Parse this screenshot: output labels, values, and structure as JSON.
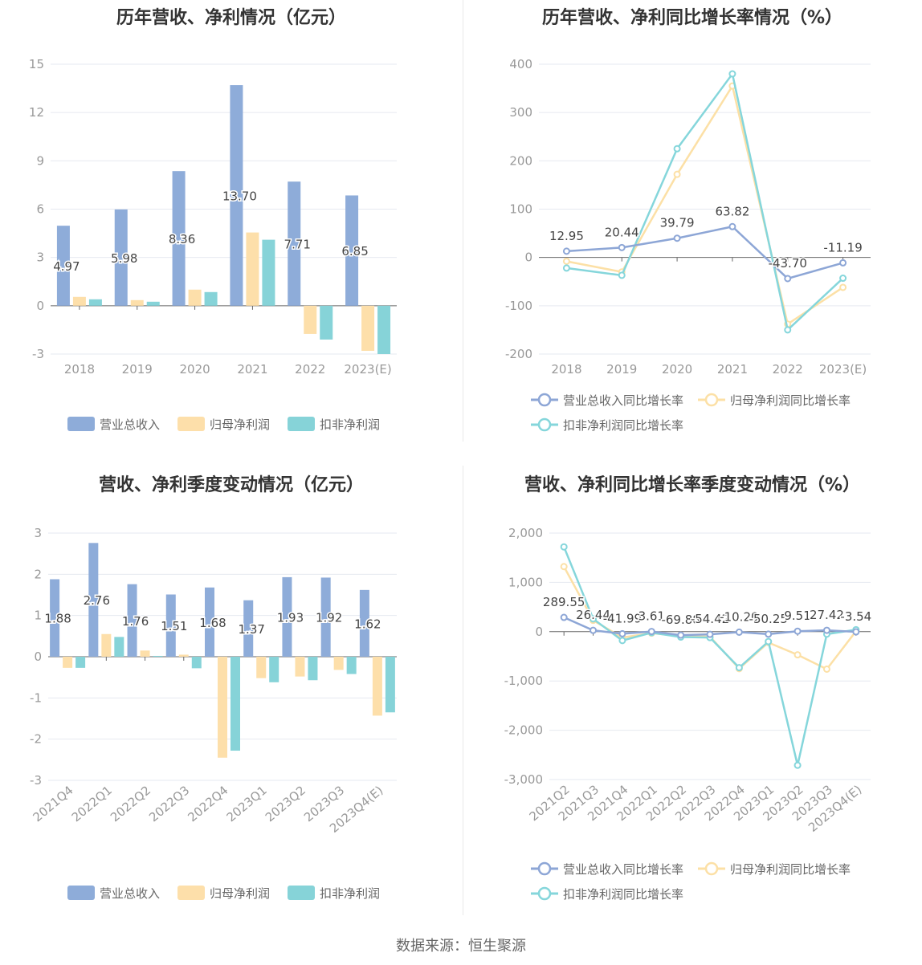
{
  "colors": {
    "revenue": "#8eacd9",
    "net_profit": "#fddfaa",
    "deducted_profit": "#86d3d8",
    "revenue_line": "#8da6d6",
    "net_line": "#fce0a6",
    "deducted_line": "#85d6db",
    "grid": "#e6e9f0",
    "zero_axis": "#666666"
  },
  "source_text": "数据来源：恒生聚源",
  "charts": {
    "annual_bar": {
      "title": "历年营收、净利情况（亿元）",
      "legend": [
        "营业总收入",
        "归母净利润",
        "扣非净利润"
      ]
    },
    "annual_line": {
      "title": "历年营收、净利同比增长率情况（%）",
      "legend": [
        "营业总收入同比增长率",
        "归母净利润同比增长率",
        "扣非净利润同比增长率"
      ]
    },
    "quarter_bar": {
      "title": "营收、净利季度变动情况（亿元）",
      "legend": [
        "营业总收入",
        "归母净利润",
        "扣非净利润"
      ]
    },
    "quarter_line": {
      "title": "营收、净利同比增长率季度变动情况（%）",
      "legend": [
        "营业总收入同比增长率",
        "归母净利润同比增长率",
        "扣非净利润同比增长率"
      ]
    }
  },
  "chart_data": [
    {
      "type": "bar",
      "title": "历年营收、净利情况（亿元）",
      "categories": [
        "2018",
        "2019",
        "2020",
        "2021",
        "2022",
        "2023(E)"
      ],
      "ylim": [
        -3,
        15
      ],
      "yticks": [
        -3,
        0,
        3,
        6,
        9,
        12,
        15
      ],
      "series": [
        {
          "name": "营业总收入",
          "values": [
            4.97,
            5.98,
            8.36,
            13.7,
            7.71,
            6.85
          ],
          "labels": [
            "4.97",
            "5.98",
            "8.36",
            "13.70",
            "7.71",
            "6.85"
          ]
        },
        {
          "name": "归母净利润",
          "values": [
            0.55,
            0.35,
            1.0,
            4.55,
            -1.75,
            -2.8
          ]
        },
        {
          "name": "扣非净利润",
          "values": [
            0.4,
            0.25,
            0.85,
            4.1,
            -2.1,
            -3.0
          ]
        }
      ],
      "legend_position": "bottom"
    },
    {
      "type": "line",
      "title": "历年营收、净利同比增长率情况（%）",
      "categories": [
        "2018",
        "2019",
        "2020",
        "2021",
        "2022",
        "2023(E)"
      ],
      "ylim": [
        -200,
        400
      ],
      "yticks": [
        -200,
        -100,
        0,
        100,
        200,
        300,
        400
      ],
      "series": [
        {
          "name": "营业总收入同比增长率",
          "values": [
            12.95,
            20.44,
            39.79,
            63.82,
            -43.7,
            -11.19
          ],
          "labels": [
            "12.95",
            "20.44",
            "39.79",
            "63.82",
            "-43.70",
            "-11.19"
          ]
        },
        {
          "name": "归母净利润同比增长率",
          "values": [
            -8,
            -30,
            172,
            355,
            -138,
            -62
          ]
        },
        {
          "name": "扣非净利润同比增长率",
          "values": [
            -22,
            -37,
            225,
            380,
            -150,
            -43
          ]
        }
      ],
      "legend_position": "bottom"
    },
    {
      "type": "bar",
      "title": "营收、净利季度变动情况（亿元）",
      "categories": [
        "2021Q4",
        "2022Q1",
        "2022Q2",
        "2022Q3",
        "2022Q4",
        "2023Q1",
        "2023Q2",
        "2023Q3",
        "2023Q4(E)"
      ],
      "ylim": [
        -3,
        3
      ],
      "yticks": [
        -3,
        -2,
        -1,
        0,
        1,
        2,
        3
      ],
      "series": [
        {
          "name": "营业总收入",
          "values": [
            1.88,
            2.76,
            1.76,
            1.51,
            1.68,
            1.37,
            1.93,
            1.92,
            1.62
          ],
          "labels": [
            "1.88",
            "2.76",
            "1.76",
            "1.51",
            "1.68",
            "1.37",
            "1.93",
            "1.92",
            "1.62"
          ]
        },
        {
          "name": "归母净利润",
          "values": [
            -0.27,
            0.55,
            0.15,
            0.05,
            -2.45,
            -0.52,
            -0.48,
            -0.32,
            -1.43
          ]
        },
        {
          "name": "扣非净利润",
          "values": [
            -0.27,
            0.48,
            0.02,
            -0.28,
            -2.28,
            -0.62,
            -0.57,
            -0.42,
            -1.35
          ]
        }
      ],
      "legend_position": "bottom"
    },
    {
      "type": "line",
      "title": "营收、净利同比增长率季度变动情况（%）",
      "categories": [
        "2021Q2",
        "2021Q3",
        "2021Q4",
        "2022Q1",
        "2022Q2",
        "2022Q3",
        "2022Q4",
        "2023Q1",
        "2023Q2",
        "2023Q3",
        "2023Q4(E)"
      ],
      "ylim": [
        -3000,
        2000
      ],
      "yticks": [
        -3000,
        -2000,
        -1000,
        0,
        1000,
        2000
      ],
      "series": [
        {
          "name": "营业总收入同比增长率",
          "values": [
            289.55,
            26.44,
            -41.99,
            3.61,
            -69.88,
            -54.42,
            -10.2,
            -50.25,
            9.51,
            27.42,
            -3.54
          ],
          "labels": [
            "289.55",
            "26.44",
            "-41.99",
            "3.61",
            "-69.88",
            "-54.42",
            "-10.20",
            "-50.25",
            "9.51",
            "27.42",
            "-3.54"
          ]
        },
        {
          "name": "归母净利润同比增长率",
          "values": [
            1320,
            230,
            -120,
            -30,
            -90,
            -100,
            -750,
            -220,
            -470,
            -760,
            10
          ]
        },
        {
          "name": "扣非净利润同比增长率",
          "values": [
            1720,
            260,
            -180,
            -20,
            -110,
            -120,
            -730,
            -200,
            -2710,
            -50,
            40
          ]
        }
      ],
      "legend_position": "bottom"
    }
  ]
}
